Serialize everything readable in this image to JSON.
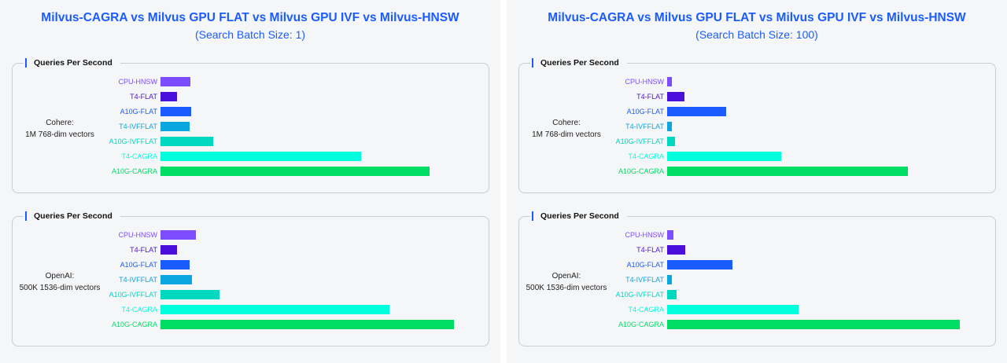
{
  "chart_data": [
    {
      "type": "bar",
      "orientation": "horizontal",
      "title": "Milvus-CAGRA vs Milvus GPU FLAT vs Milvus GPU IVF vs Milvus-HNSW",
      "subtitle": "(Search Batch Size: 1)",
      "categories": [
        "CPU-HNSW",
        "T4-FLAT",
        "A10G-FLAT",
        "T4-IVFFLAT",
        "A10G-IVFFLAT",
        "T4-CAGRA",
        "A10G-CAGRA"
      ],
      "colors": [
        "#7c4dff",
        "#4b0fdc",
        "#1a5cff",
        "#0aa6e0",
        "#00d8c0",
        "#00ffdc",
        "#00dc64"
      ],
      "panels": [
        {
          "metric": "Queries Per Second",
          "dataset_line1": "Cohere:",
          "dataset_line2": "1M 768-dim vectors",
          "values": [
            39,
            21,
            40,
            38,
            68,
            260,
            349
          ]
        },
        {
          "metric": "Queries Per Second",
          "dataset_line1": "OpenAI:",
          "dataset_line2": "500K 1536-dim vectors",
          "values": [
            46,
            21,
            38,
            41,
            77,
            297,
            381
          ]
        }
      ]
    },
    {
      "type": "bar",
      "orientation": "horizontal",
      "title": "Milvus-CAGRA vs Milvus GPU FLAT vs Milvus GPU IVF vs Milvus-HNSW",
      "subtitle": "(Search Batch Size: 100)",
      "categories": [
        "CPU-HNSW",
        "T4-FLAT",
        "A10G-FLAT",
        "T4-IVFFLAT",
        "A10G-IVFFLAT",
        "T4-CAGRA",
        "A10G-CAGRA"
      ],
      "colors": [
        "#7c4dff",
        "#4b0fdc",
        "#1a5cff",
        "#0aa6e0",
        "#00d8c0",
        "#00ffdc",
        "#00dc64"
      ],
      "panels": [
        {
          "metric": "Queries Per Second",
          "dataset_line1": "Cohere:",
          "dataset_line2": "1M 768-dim vectors",
          "values": [
            6,
            22,
            77,
            6,
            10,
            148,
            312
          ]
        },
        {
          "metric": "Queries Per Second",
          "dataset_line1": "OpenAI:",
          "dataset_line2": "500K 1536-dim vectors",
          "values": [
            8,
            23,
            85,
            6,
            12,
            170,
            380
          ]
        }
      ]
    }
  ]
}
